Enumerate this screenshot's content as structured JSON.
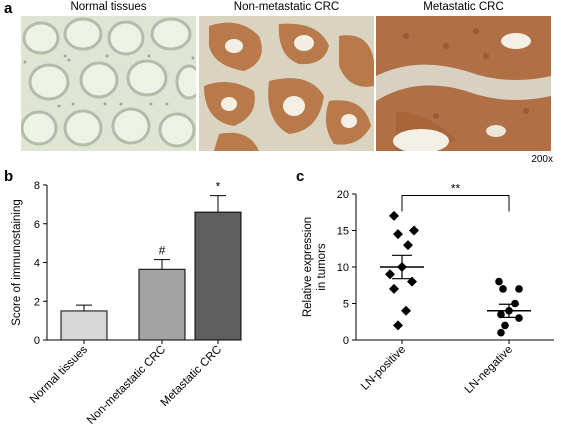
{
  "panel_a": {
    "letter": "a",
    "titles": [
      "Normal tissues",
      "Non-metastatic CRC",
      "Metastatic CRC"
    ],
    "magnification": "200x"
  },
  "panel_b": {
    "letter": "b"
  },
  "panel_c": {
    "letter": "c"
  },
  "chart_data": [
    {
      "type": "bar",
      "panel": "b",
      "categories": [
        "Normal tissues",
        "Non-metastatic CRC",
        "Metastatic CRC"
      ],
      "values": [
        1.5,
        3.65,
        6.6
      ],
      "errors": [
        0.3,
        0.5,
        0.85
      ],
      "annotations": [
        "",
        "#",
        "*"
      ],
      "bar_colors": [
        "#d8d8d8",
        "#a3a3a3",
        "#5e5e5e"
      ],
      "ylabel": "Score of immunostaining",
      "ylim": [
        0,
        8
      ],
      "yticks": [
        "0",
        "2",
        "4",
        "6",
        "8"
      ]
    },
    {
      "type": "scatter",
      "panel": "c",
      "categories": [
        "LN-positive",
        "LN-negative"
      ],
      "series": [
        {
          "values": [
            17,
            15,
            14.5,
            13,
            10,
            9,
            8,
            7,
            4,
            2
          ],
          "mean": 10,
          "sem": 1.6,
          "marker": "diamond"
        },
        {
          "values": [
            8,
            7,
            7,
            5,
            4,
            3.5,
            3,
            2,
            1
          ],
          "mean": 4,
          "sem": 0.9,
          "marker": "circle"
        }
      ],
      "significance": "**",
      "ylabel": "Relative expression in tumors",
      "ylim": [
        0,
        20
      ],
      "yticks": [
        "0",
        "5",
        "10",
        "15",
        "20"
      ]
    }
  ]
}
